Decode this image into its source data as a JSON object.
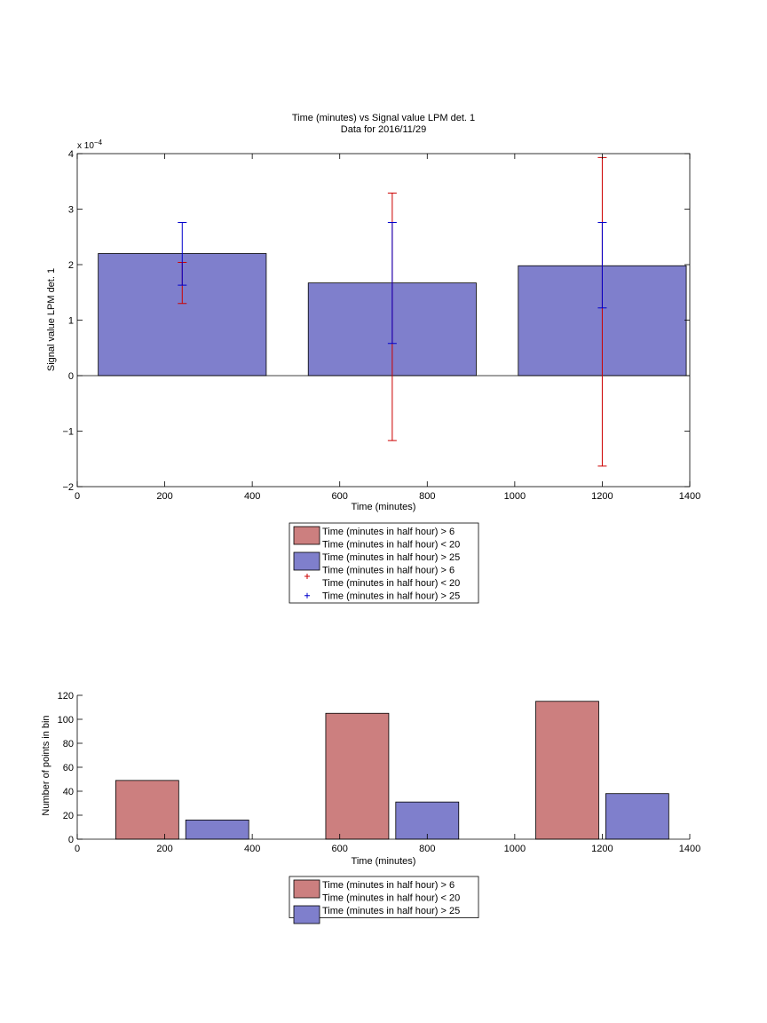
{
  "chart_data": [
    {
      "type": "bar",
      "title": "Time (minutes) vs Signal value LPM det. 1",
      "subtitle": "Data for 2016/11/29",
      "xlabel": "Time (minutes)",
      "ylabel": "Signal value LPM det. 1",
      "exponent_label": "x 10",
      "exponent_power": "−4",
      "xlim": [
        0,
        1400
      ],
      "ylim": [
        -2,
        4
      ],
      "xticks": [
        0,
        200,
        400,
        600,
        800,
        1000,
        1200,
        1400
      ],
      "yticks": [
        -2,
        -1,
        0,
        1,
        2,
        3,
        4
      ],
      "ytick_labels": [
        "−2",
        "−1",
        "0",
        "1",
        "2",
        "3",
        "4"
      ],
      "bar_width": 384,
      "bars": [
        {
          "x": 240,
          "value": 2.2
        },
        {
          "x": 720,
          "value": 1.67
        },
        {
          "x": 1200,
          "value": 1.98
        }
      ],
      "errorbars": [
        {
          "series": "Time (minutes in half hour) > 6 Time (minutes in half hour) < 20",
          "color": "#cc0000",
          "x": 240,
          "lower": 1.3,
          "upper": 2.04
        },
        {
          "series": "Time (minutes in half hour) > 6 Time (minutes in half hour) < 20",
          "color": "#cc0000",
          "x": 720,
          "lower": -1.17,
          "upper": 3.29
        },
        {
          "series": "Time (minutes in half hour) > 6 Time (minutes in half hour) < 20",
          "color": "#cc0000",
          "x": 1200,
          "lower": -1.63,
          "upper": 3.93
        },
        {
          "series": "Time (minutes in half hour) > 25",
          "color": "#0000cc",
          "x": 240,
          "lower": 1.63,
          "upper": 2.76
        },
        {
          "series": "Time (minutes in half hour) > 25",
          "color": "#0000cc",
          "x": 720,
          "lower": 0.58,
          "upper": 2.76
        },
        {
          "series": "Time (minutes in half hour) > 25",
          "color": "#0000cc",
          "x": 1200,
          "lower": 1.22,
          "upper": 2.76
        }
      ],
      "legend": [
        {
          "kind": "patch",
          "color": "#cc7f7f",
          "lines": [
            "Time (minutes in half hour) > 6",
            "Time (minutes in half hour) < 20"
          ]
        },
        {
          "kind": "patch",
          "color": "#7f7fcc",
          "lines": [
            "Time (minutes in half hour) > 25"
          ]
        },
        {
          "kind": "marker",
          "color": "#cc0000",
          "lines": [
            "Time (minutes in half hour) > 6",
            "Time (minutes in half hour) < 20"
          ]
        },
        {
          "kind": "marker",
          "color": "#0000cc",
          "lines": [
            "Time (minutes in half hour) > 25"
          ]
        }
      ],
      "legend_placement": "below",
      "grid": false
    },
    {
      "type": "bar",
      "xlabel": "Time (minutes)",
      "ylabel": "Number of points in bin",
      "xlim": [
        0,
        1400
      ],
      "ylim": [
        0,
        120
      ],
      "xticks": [
        0,
        200,
        400,
        600,
        800,
        1000,
        1200,
        1400
      ],
      "yticks": [
        0,
        20,
        40,
        60,
        80,
        100,
        120
      ],
      "bar_width": 144,
      "series": [
        {
          "name": "Time (minutes in half hour) > 6 Time (minutes in half hour) < 20",
          "color": "#cc7f7f",
          "x": [
            160,
            640,
            1120
          ],
          "values": [
            49,
            105,
            115
          ]
        },
        {
          "name": "Time (minutes in half hour) > 25",
          "color": "#7f7fcc",
          "x": [
            320,
            800,
            1280
          ],
          "values": [
            16,
            31,
            38
          ]
        }
      ],
      "legend": [
        {
          "kind": "patch",
          "color": "#cc7f7f",
          "lines": [
            "Time (minutes in half hour) > 6",
            "Time (minutes in half hour) < 20"
          ]
        },
        {
          "kind": "patch",
          "color": "#7f7fcc",
          "lines": [
            "Time (minutes in half hour) > 25"
          ]
        }
      ],
      "legend_placement": "below",
      "grid": false
    }
  ]
}
